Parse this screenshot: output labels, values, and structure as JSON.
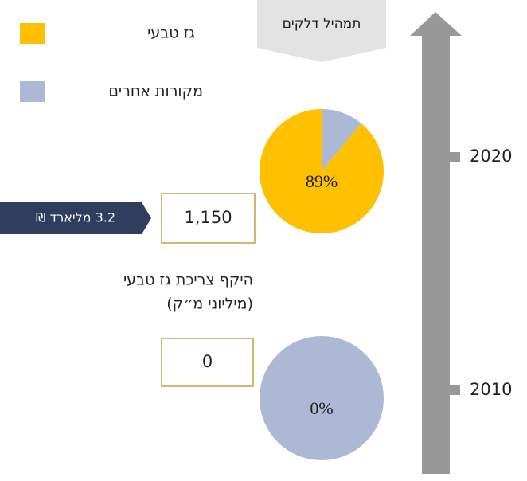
{
  "header": {
    "title": "תמהיל דלקים"
  },
  "consumption_label": [
    "היקף צריכת גז טבעי",
    "(מיליוני מ״ק)"
  ],
  "chart_data": [
    {
      "type": "pie",
      "year": "2020",
      "categories": [
        "גז טבעי",
        "מקורות אחרים"
      ],
      "values": [
        89,
        11
      ],
      "value_labels": [
        "89%",
        null
      ],
      "colors": [
        "#ffc000",
        "#adb9d4"
      ],
      "consumption": "1,150",
      "cost": "3.2 מליארד ₪"
    },
    {
      "type": "pie",
      "year": "2010",
      "categories": [
        "גז טבעי",
        "מקורות אחרים"
      ],
      "values": [
        0,
        100
      ],
      "value_labels": [
        "0%",
        null
      ],
      "colors": [
        "#ffc000",
        "#adb9d4"
      ],
      "consumption": "0"
    }
  ]
}
